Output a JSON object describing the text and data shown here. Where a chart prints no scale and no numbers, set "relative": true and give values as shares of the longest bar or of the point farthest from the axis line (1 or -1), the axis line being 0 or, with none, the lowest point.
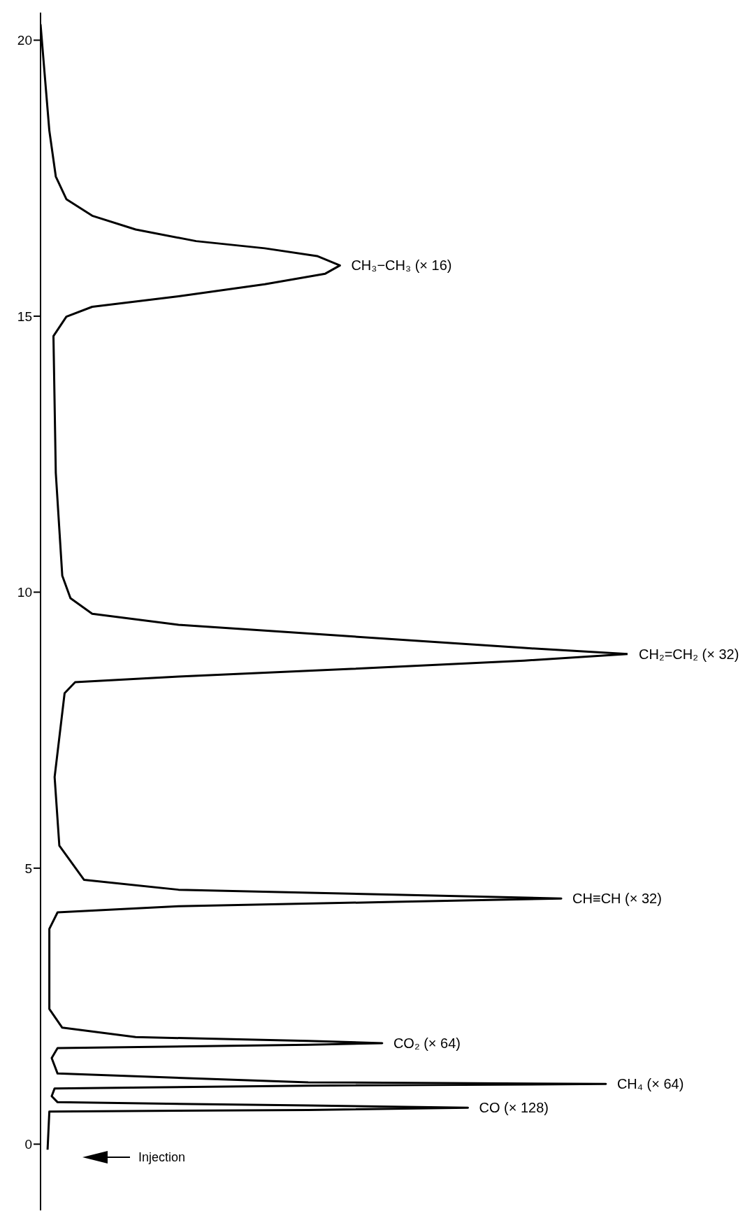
{
  "chart_data": {
    "type": "line",
    "orientation": "horizontal",
    "relative": true,
    "marker": "none",
    "line_style": "solid",
    "grid": false,
    "legend": false,
    "tick_labels": "y",
    "ylim": [
      -1.2,
      20.5
    ],
    "yticks": [
      0,
      5,
      10,
      15,
      20
    ],
    "series": [
      {
        "color": "#000000",
        "x": [
          20.29,
          18.36,
          17.53,
          17.12,
          16.82,
          16.57,
          16.36,
          16.23,
          16.09,
          15.92,
          15.77,
          15.58,
          15.36,
          15.17,
          14.99,
          14.64,
          12.16,
          10.3,
          9.89,
          9.61,
          9.41,
          9.2,
          8.99,
          8.88,
          8.76,
          8.61,
          8.47,
          8.37,
          8.17,
          6.65,
          5.41,
          4.79,
          4.61,
          4.52,
          4.45,
          4.39,
          4.31,
          4.2,
          3.9,
          2.45,
          2.11,
          1.94,
          1.87,
          1.83,
          1.8,
          1.74,
          1.56,
          1.28,
          1.12,
          1.09,
          1.06,
          1.01,
          0.87,
          0.76,
          0.7,
          0.66,
          0.62,
          0.59,
          -0.1
        ],
        "values": [
          0,
          0.015,
          0.026,
          0.044,
          0.088,
          0.162,
          0.265,
          0.382,
          0.471,
          0.51,
          0.485,
          0.382,
          0.235,
          0.088,
          0.044,
          0.022,
          0.026,
          0.037,
          0.051,
          0.088,
          0.235,
          0.529,
          0.824,
          1,
          0.824,
          0.529,
          0.235,
          0.059,
          0.041,
          0.024,
          0.032,
          0.074,
          0.235,
          0.603,
          0.887,
          0.603,
          0.235,
          0.029,
          0.015,
          0.015,
          0.037,
          0.162,
          0.456,
          0.582,
          0.456,
          0.029,
          0.019,
          0.029,
          0.456,
          0.963,
          0.456,
          0.024,
          0.019,
          0.029,
          0.456,
          0.728,
          0.456,
          0.015,
          0.012
        ]
      }
    ],
    "annotations": [
      {
        "text": "CH₃−CH₃ (× 16)",
        "x": 0.51,
        "y": 15.92
      },
      {
        "text": "CH₂=CH₂ (× 32)",
        "x": 1,
        "y": 8.88
      },
      {
        "text": "CH≡CH (× 32)",
        "x": 0.887,
        "y": 4.45
      },
      {
        "text": "CO₂ (× 64)",
        "x": 0.582,
        "y": 1.83
      },
      {
        "text": "CH₄ (× 64)",
        "x": 0.963,
        "y": 1.09
      },
      {
        "text": "CO (× 128)",
        "x": 0.728,
        "y": 0.66
      },
      "Injection"
    ]
  }
}
